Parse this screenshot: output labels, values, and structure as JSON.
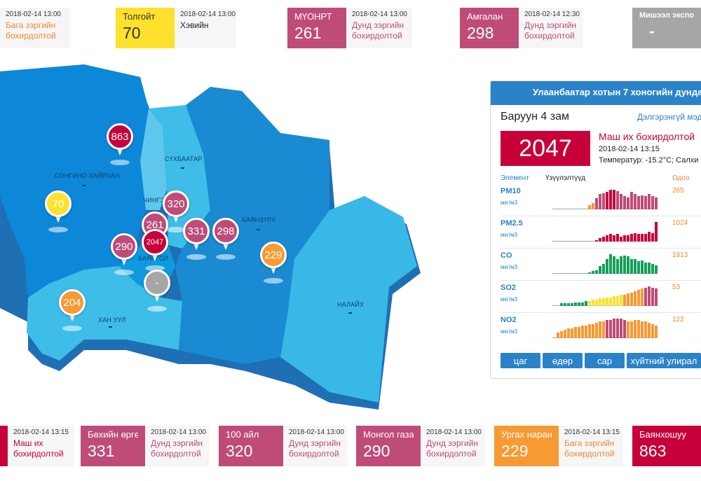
{
  "top_cards": [
    {
      "name": "",
      "value": "",
      "time": "2018-02-14 13:00",
      "status": "Бага зэргийн бохирдолтой",
      "color": "#f79a33",
      "status_color": "#f0892f"
    },
    {
      "name": "Толгойт",
      "value": "70",
      "time": "2018-02-14 13:00",
      "status": "Хэвийн",
      "color": "#fde12d",
      "status_color": "#222222"
    },
    {
      "name": "МҮОНРТ",
      "value": "261",
      "time": "2018-02-14 13:00",
      "status": "Дунд зэргийн бохирдолтой",
      "color": "#bf4b79",
      "status_color": "#bf4b79"
    },
    {
      "name": "Амгалан",
      "value": "298",
      "time": "2018-02-14 12:30",
      "status": "Дунд зэргийн бохирдолтой",
      "color": "#bf4b79",
      "status_color": "#bf4b79"
    },
    {
      "name": "Мишээл экспо",
      "value": "-",
      "time": "",
      "status": "",
      "color": "#a6a6a6",
      "status_color": "#222222"
    }
  ],
  "bottom_cards": [
    {
      "name": "",
      "value": "",
      "time": "2018-02-14 13:15",
      "status": "Маш их бохирдолтой",
      "color": "#c8003a",
      "status_color": "#c8003a"
    },
    {
      "name": "Бөхийн өргөө",
      "value": "331",
      "time": "2018-02-14 13:00",
      "status": "Дунд зэргийн бохирдолтой",
      "color": "#bf4b79",
      "status_color": "#bf4b79"
    },
    {
      "name": "100 айл",
      "value": "320",
      "time": "2018-02-14 13:00",
      "status": "Дунд зэргийн бохирдолтой",
      "color": "#bf4b79",
      "status_color": "#bf4b79"
    },
    {
      "name": "Монгол газар",
      "value": "290",
      "time": "2018-02-14 13:00",
      "status": "Дунд зэргийн бохирдолтой",
      "color": "#bf4b79",
      "status_color": "#bf4b79"
    },
    {
      "name": "Ургах наран",
      "value": "229",
      "time": "2018-02-14 13:15",
      "status": "Бага зэргийн бохирдолтой",
      "color": "#f79a33",
      "status_color": "#f0892f"
    },
    {
      "name": "Баянхошуу",
      "value": "863",
      "time": "",
      "status": "",
      "color": "#c8003a",
      "status_color": "#222222"
    }
  ],
  "districts": [
    "СОНГИНО ХАЙРХАН",
    "СҮХБААТАР",
    "ЧИНГЭ",
    "БАЯНЗҮРХ",
    "БАЯНГОЛ",
    "ХАН УУЛ",
    "НАЛАЙХ"
  ],
  "pins": [
    {
      "value": "863",
      "color": "#c8003a"
    },
    {
      "value": "70",
      "color": "#fde12d"
    },
    {
      "value": "320",
      "color": "#bf4b79"
    },
    {
      "value": "261",
      "color": "#bf4b79"
    },
    {
      "value": "331",
      "color": "#bf4b79"
    },
    {
      "value": "298",
      "color": "#bf4b79"
    },
    {
      "value": "290",
      "color": "#bf4b79"
    },
    {
      "value": "2047",
      "color": "#c8003a"
    },
    {
      "value": "229",
      "color": "#f79a33"
    },
    {
      "value": "-",
      "color": "#a6a6a6"
    },
    {
      "value": "204",
      "color": "#f79a33"
    }
  ],
  "panel": {
    "header": "Улаанбаатар хотын 7 хоногийн дундаж",
    "station": "Баруун 4 зам",
    "more_link": "Дэлгэрэнгүй мэдээлэл",
    "aqi": "2047",
    "status": "Маш их бохирдолтой",
    "time": "2018-02-14 13:15",
    "temperature": "Температур: -15.2°C; Салхи",
    "col_element": "Элемент",
    "col_indicators": "Үзүүлэлтүүд",
    "col_now": "Одоо",
    "pollutants": [
      {
        "name": "PM10",
        "unit": "мкг/м3",
        "now": "265",
        "bars": [
          0,
          0,
          0,
          0,
          0,
          0,
          0,
          0,
          0,
          0,
          4,
          6,
          10,
          14,
          15,
          16,
          18,
          18,
          17,
          14,
          12,
          11,
          16,
          14,
          12,
          13,
          12,
          14,
          12,
          11
        ],
        "colors": [
          "#f79a33",
          "#f79a33",
          "#bf4b79",
          "#bf4b79",
          "#bf4b79",
          "#c8003a",
          "#c8003a",
          "#c8003a",
          "#bf4b79",
          "#bf4b79",
          "#bf4b79",
          "#bf4b79",
          "#bf4b79",
          "#bf4b79",
          "#bf4b79",
          "#bf4b79",
          "#bf4b79",
          "#bf4b79",
          "#bf4b79",
          "#bf4b79"
        ]
      },
      {
        "name": "PM2.5",
        "unit": "мкг/м3",
        "now": "1024",
        "bars": [
          0,
          0,
          0,
          0,
          0,
          0,
          0,
          0,
          0,
          0,
          0,
          0,
          1,
          3,
          4,
          5,
          6,
          5,
          6,
          4,
          5,
          5,
          6,
          7,
          6,
          6,
          6,
          8,
          7,
          16
        ],
        "colors": [
          "#c8003a"
        ]
      },
      {
        "name": "CO",
        "unit": "мкг/м3",
        "now": "1913",
        "bars": [
          0,
          0,
          0,
          0,
          0,
          0,
          0,
          0,
          0,
          0,
          1,
          2,
          3,
          6,
          8,
          12,
          16,
          14,
          12,
          14,
          15,
          14,
          12,
          12,
          10,
          11,
          9,
          9,
          8,
          7
        ],
        "colors": [
          "#16a05a"
        ]
      },
      {
        "name": "SO2",
        "unit": "мкг/м3",
        "now": "53",
        "bars": [
          0,
          0,
          2,
          2,
          2,
          2,
          3,
          3,
          3,
          4,
          4,
          5,
          5,
          6,
          6,
          7,
          7,
          8,
          8,
          9,
          9,
          10,
          11,
          12,
          13,
          14,
          15,
          16,
          15,
          14
        ],
        "colors": [
          "#16a05a",
          "#16a05a",
          "#16a05a",
          "#16a05a",
          "#16a05a",
          "#16a05a",
          "#16a05a",
          "#16a05a",
          "#16a05a",
          "#16a05a",
          "#fde12d",
          "#fde12d",
          "#fde12d",
          "#fde12d",
          "#fde12d",
          "#fde12d",
          "#fde12d",
          "#fde12d",
          "#fde12d",
          "#fde12d",
          "#f79a33",
          "#f79a33",
          "#f79a33",
          "#f79a33",
          "#f79a33",
          "#f79a33",
          "#bf4b79",
          "#bf4b79",
          "#bf4b79",
          "#bf4b79"
        ]
      },
      {
        "name": "NO2",
        "unit": "мкг/м3",
        "now": "122",
        "bars": [
          0,
          4,
          5,
          6,
          7,
          7,
          8,
          8,
          9,
          9,
          10,
          10,
          11,
          12,
          12,
          13,
          13,
          14,
          14,
          14,
          13,
          12,
          12,
          13,
          13,
          12,
          12,
          11,
          10,
          9
        ],
        "colors": [
          "#f79a33",
          "#f79a33",
          "#f79a33",
          "#f79a33",
          "#f79a33",
          "#f79a33",
          "#f79a33",
          "#f79a33",
          "#f79a33",
          "#f79a33",
          "#f79a33",
          "#f79a33",
          "#f79a33",
          "#f79a33",
          "#f79a33",
          "#bf4b79",
          "#bf4b79",
          "#bf4b79",
          "#bf4b79",
          "#bf4b79",
          "#bf4b79",
          "#f79a33",
          "#f79a33",
          "#f79a33",
          "#f79a33",
          "#f79a33",
          "#f79a33",
          "#f79a33",
          "#f79a33",
          "#f79a33"
        ]
      }
    ],
    "buttons": [
      "цаг",
      "өдөр",
      "сар",
      "хүйтний улирал"
    ]
  }
}
